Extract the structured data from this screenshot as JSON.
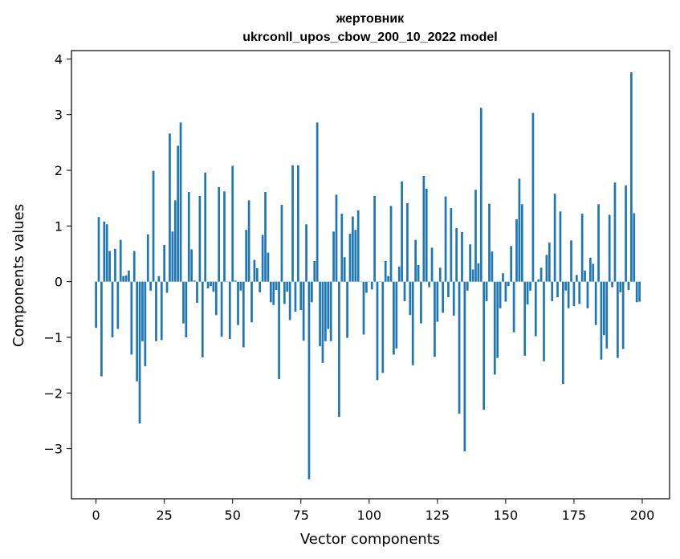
{
  "chart_data": {
    "type": "bar",
    "title": "жертовник",
    "subtitle": "ukrconll_upos_cbow_200_10_2022 model",
    "xlabel": "Vector components",
    "ylabel": "Components values",
    "xlim": [
      -9,
      210
    ],
    "ylim": [
      -3.9,
      4.15
    ],
    "xticks": [
      0,
      25,
      50,
      75,
      100,
      125,
      150,
      175,
      200
    ],
    "yticks": [
      -3,
      -2,
      -1,
      0,
      1,
      2,
      3,
      4
    ],
    "bar_width": 0.8,
    "grid": false,
    "color": "#1f77b4",
    "x": [
      0,
      1,
      2,
      3,
      4,
      5,
      6,
      7,
      8,
      9,
      10,
      11,
      12,
      13,
      14,
      15,
      16,
      17,
      18,
      19,
      20,
      21,
      22,
      23,
      24,
      25,
      26,
      27,
      28,
      29,
      30,
      31,
      32,
      33,
      34,
      35,
      36,
      37,
      38,
      39,
      40,
      41,
      42,
      43,
      44,
      45,
      46,
      47,
      48,
      49,
      50,
      51,
      52,
      53,
      54,
      55,
      56,
      57,
      58,
      59,
      60,
      61,
      62,
      63,
      64,
      65,
      66,
      67,
      68,
      69,
      70,
      71,
      72,
      73,
      74,
      75,
      76,
      77,
      78,
      79,
      80,
      81,
      82,
      83,
      84,
      85,
      86,
      87,
      88,
      89,
      90,
      91,
      92,
      93,
      94,
      95,
      96,
      97,
      98,
      99,
      100,
      101,
      102,
      103,
      104,
      105,
      106,
      107,
      108,
      109,
      110,
      111,
      112,
      113,
      114,
      115,
      116,
      117,
      118,
      119,
      120,
      121,
      122,
      123,
      124,
      125,
      126,
      127,
      128,
      129,
      130,
      131,
      132,
      133,
      134,
      135,
      136,
      137,
      138,
      139,
      140,
      141,
      142,
      143,
      144,
      145,
      146,
      147,
      148,
      149,
      150,
      151,
      152,
      153,
      154,
      155,
      156,
      157,
      158,
      159,
      160,
      161,
      162,
      163,
      164,
      165,
      166,
      167,
      168,
      169,
      170,
      171,
      172,
      173,
      174,
      175,
      176,
      177,
      178,
      179,
      180,
      181,
      182,
      183,
      184,
      185,
      186,
      187,
      188,
      189,
      190,
      191,
      192,
      193,
      194,
      195,
      196,
      197,
      198,
      199
    ],
    "values": [
      -0.83,
      1.16,
      -1.7,
      1.08,
      1.03,
      0.55,
      -1.0,
      0.59,
      -0.85,
      0.75,
      0.1,
      0.11,
      0.2,
      -1.31,
      0.55,
      -1.79,
      -2.55,
      -1.07,
      -1.52,
      0.85,
      -0.16,
      1.99,
      -1.07,
      0.1,
      -1.05,
      0.66,
      -0.2,
      2.66,
      0.9,
      1.46,
      2.44,
      2.86,
      -0.75,
      -1.0,
      1.61,
      0.58,
      0.02,
      -0.38,
      1.54,
      -1.36,
      1.96,
      -0.12,
      -0.08,
      -0.18,
      -0.6,
      1.7,
      -0.99,
      1.62,
      0.0,
      -1.03,
      2.08,
      0.02,
      -0.78,
      -0.16,
      -1.18,
      0.93,
      1.46,
      -0.73,
      0.39,
      0.24,
      -0.19,
      0.84,
      1.61,
      0.52,
      -0.37,
      -0.42,
      -0.15,
      -1.75,
      1.38,
      -0.4,
      -0.18,
      -0.69,
      2.09,
      -0.54,
      2.09,
      -0.51,
      -1.06,
      1.03,
      -3.55,
      -0.37,
      0.37,
      2.86,
      -1.16,
      -1.46,
      -1.07,
      -0.85,
      -1.07,
      0.9,
      1.56,
      -2.43,
      1.22,
      0.44,
      -1.01,
      0.86,
      1.17,
      0.93,
      1.28,
      0.0,
      -0.95,
      -0.2,
      0.0,
      -0.14,
      1.54,
      -1.77,
      0.0,
      -1.64,
      0.37,
      0.1,
      1.36,
      -1.31,
      -1.2,
      0.27,
      1.8,
      -0.35,
      1.41,
      -0.6,
      -1.5,
      0.75,
      0.3,
      -0.75,
      1.9,
      1.67,
      -0.1,
      0.61,
      -1.35,
      -0.72,
      0.25,
      -0.56,
      1.53,
      -0.28,
      1.32,
      -0.61,
      0.96,
      -2.37,
      0.89,
      -3.05,
      -0.16,
      0.67,
      0.22,
      1.65,
      0.33,
      3.12,
      -2.3,
      -0.35,
      1.4,
      0.54,
      -1.67,
      -1.37,
      -0.48,
      0.15,
      -0.36,
      -0.08,
      0.64,
      -0.91,
      1.12,
      1.85,
      1.39,
      -1.33,
      -0.41,
      -0.16,
      3.03,
      -0.98,
      0.04,
      0.25,
      -1.43,
      0.48,
      0.7,
      -0.35,
      1.58,
      -0.28,
      1.26,
      -1.84,
      -0.16,
      -0.48,
      0.74,
      -0.44,
      0.12,
      -0.4,
      1.22,
      0.2,
      -0.48,
      0.43,
      0.32,
      -0.78,
      1.39,
      -1.4,
      -0.96,
      -1.2,
      1.2,
      -0.1,
      1.78,
      -1.37,
      -0.19,
      -1.21,
      1.73,
      -0.15,
      3.76,
      1.23,
      -0.37,
      -0.36
    ]
  }
}
